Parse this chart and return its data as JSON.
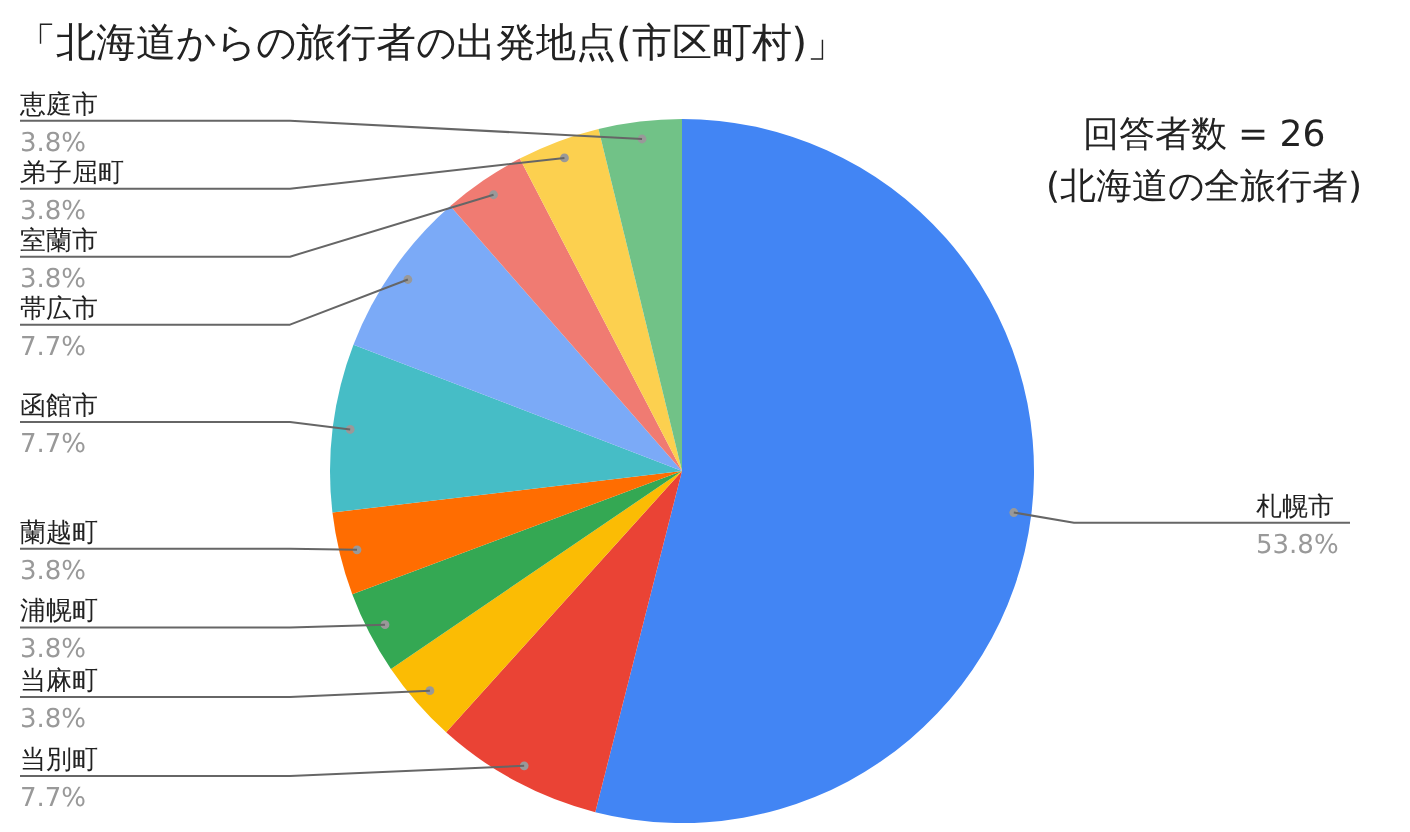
{
  "chart_data": {
    "type": "pie",
    "title": "「北海道からの旅行者の出発地点(市区町村)」",
    "categories": [
      "札幌市",
      "当別町",
      "当麻町",
      "浦幌町",
      "蘭越町",
      "函館市",
      "帯広市",
      "室蘭市",
      "弟子屈町",
      "恵庭市"
    ],
    "values": [
      53.8,
      7.7,
      3.8,
      3.8,
      3.8,
      7.7,
      7.7,
      3.8,
      3.8,
      3.8
    ],
    "value_labels": [
      "53.8%",
      "7.7%",
      "3.8%",
      "3.8%",
      "3.8%",
      "7.7%",
      "7.7%",
      "3.8%",
      "3.8%",
      "3.8%"
    ],
    "colors": [
      "#4285f4",
      "#ea4335",
      "#fbbc04",
      "#34a853",
      "#ff6d01",
      "#46bdc6",
      "#7baaf7",
      "#f07b72",
      "#fcd04f",
      "#71c287"
    ],
    "legend": false,
    "annotations": [
      "回答者数 = 26",
      "(北海道の全旅行者)"
    ]
  }
}
